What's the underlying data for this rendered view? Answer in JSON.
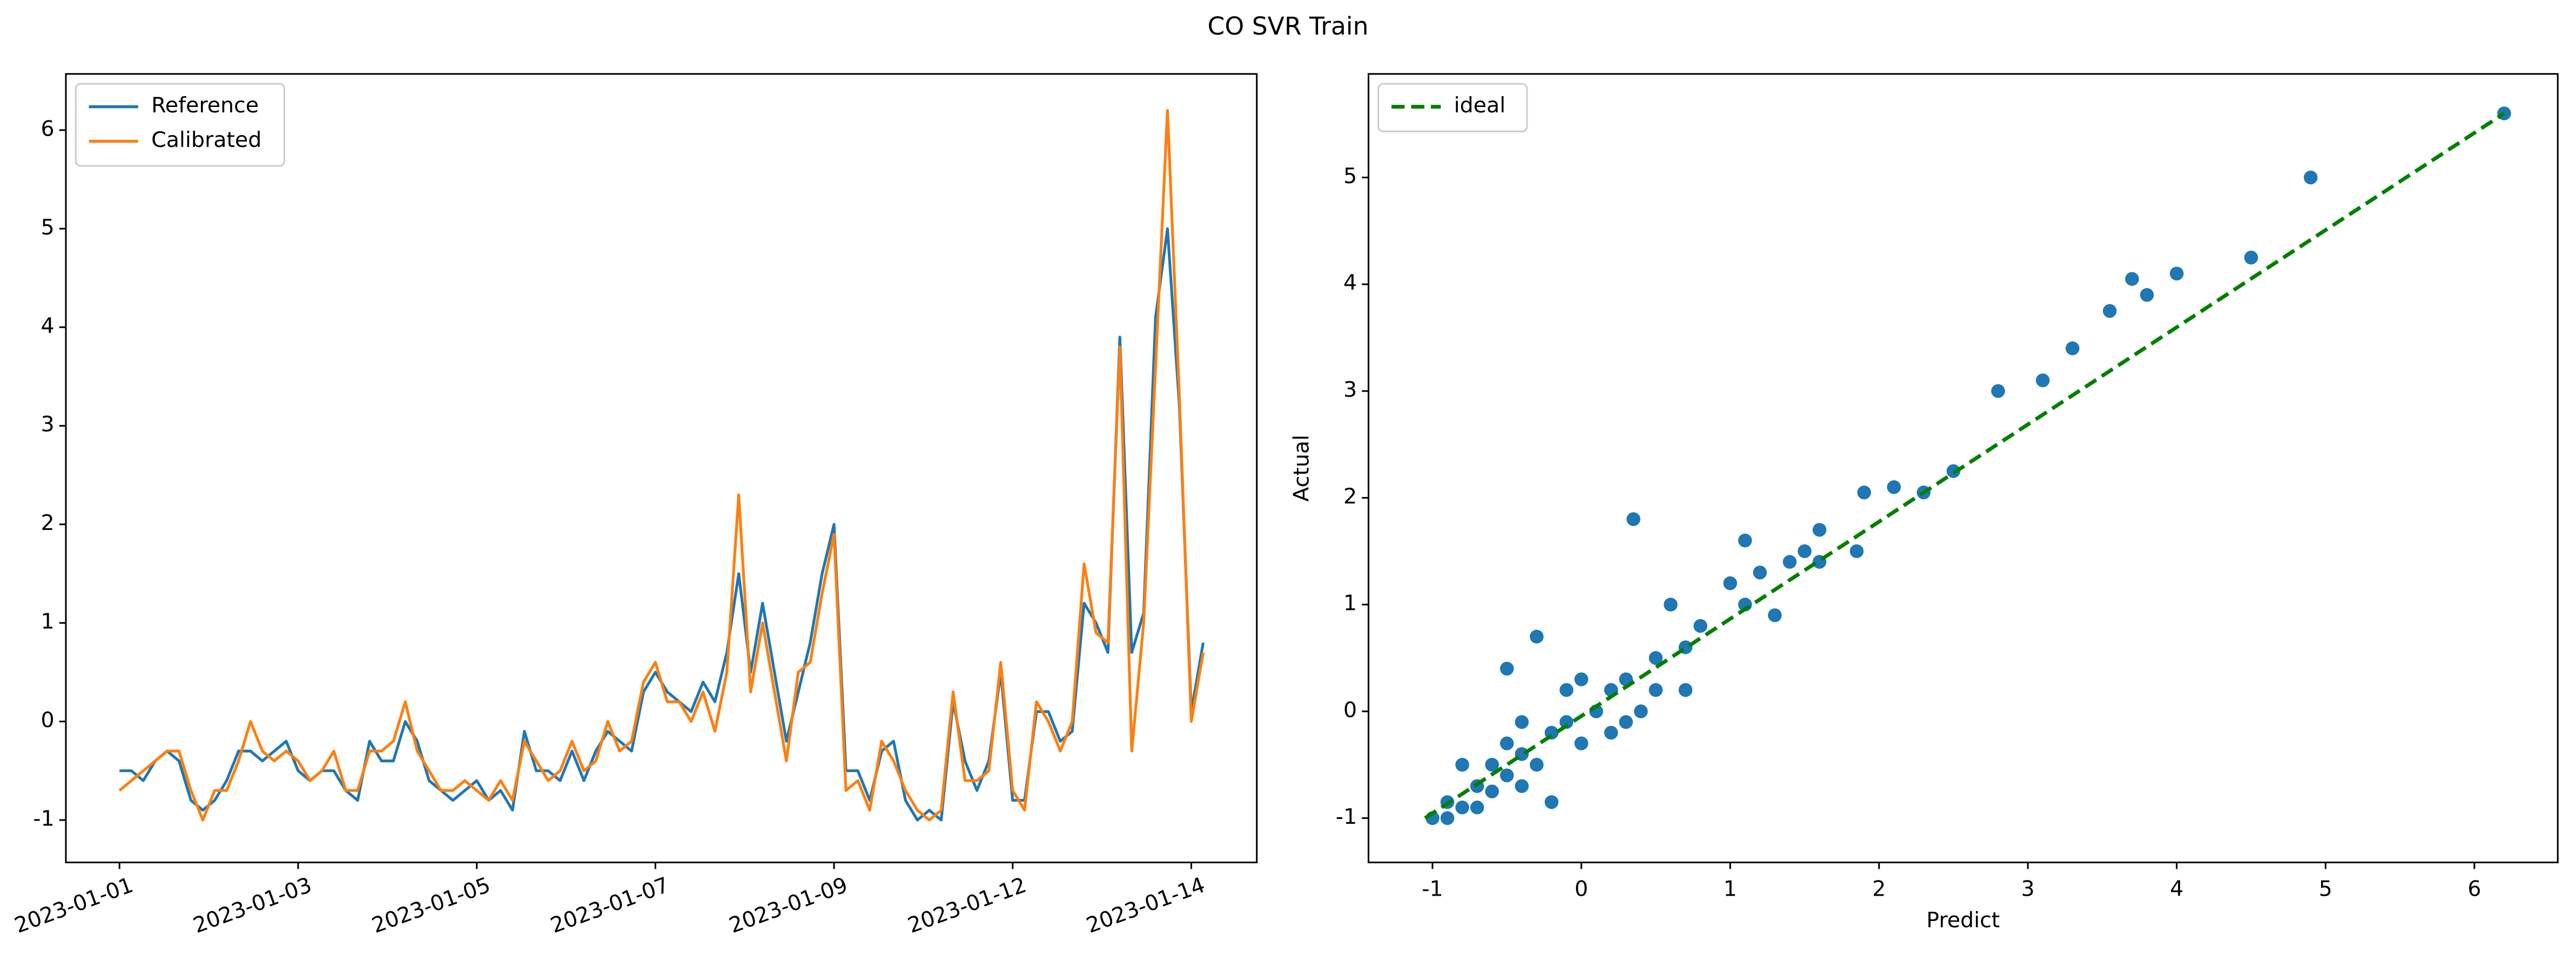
{
  "title": "CO SVR Train",
  "chart_data": [
    {
      "type": "line",
      "legend": "upper left",
      "grid": false,
      "series": [
        {
          "name": "Reference",
          "color": "#1f77b4",
          "values": [
            -0.5,
            -0.5,
            -0.6,
            -0.4,
            -0.3,
            -0.4,
            -0.8,
            -0.9,
            -0.8,
            -0.6,
            -0.3,
            -0.3,
            -0.4,
            -0.3,
            -0.2,
            -0.5,
            -0.6,
            -0.5,
            -0.5,
            -0.7,
            -0.8,
            -0.2,
            -0.4,
            -0.4,
            0.0,
            -0.2,
            -0.6,
            -0.7,
            -0.8,
            -0.7,
            -0.6,
            -0.8,
            -0.7,
            -0.9,
            -0.1,
            -0.5,
            -0.5,
            -0.6,
            -0.3,
            -0.6,
            -0.3,
            -0.1,
            -0.2,
            -0.3,
            0.3,
            0.5,
            0.3,
            0.2,
            0.1,
            0.4,
            0.2,
            0.7,
            1.5,
            0.5,
            1.2,
            0.5,
            -0.2,
            0.3,
            0.8,
            1.5,
            2.0,
            -0.5,
            -0.5,
            -0.8,
            -0.3,
            -0.2,
            -0.8,
            -1.0,
            -0.9,
            -1.0,
            0.2,
            -0.4,
            -0.7,
            -0.4,
            0.5,
            -0.8,
            -0.8,
            0.1,
            0.1,
            -0.2,
            -0.1,
            1.2,
            1.0,
            0.7,
            3.9,
            0.7,
            1.1,
            4.1,
            5.0,
            3.2,
            0.1,
            0.8
          ]
        },
        {
          "name": "Calibrated",
          "color": "#ff7f0e",
          "values": [
            -0.7,
            -0.6,
            -0.5,
            -0.4,
            -0.3,
            -0.3,
            -0.7,
            -1.0,
            -0.7,
            -0.7,
            -0.4,
            0.0,
            -0.3,
            -0.4,
            -0.3,
            -0.4,
            -0.6,
            -0.5,
            -0.3,
            -0.7,
            -0.7,
            -0.3,
            -0.3,
            -0.2,
            0.2,
            -0.3,
            -0.5,
            -0.7,
            -0.7,
            -0.6,
            -0.7,
            -0.8,
            -0.6,
            -0.8,
            -0.2,
            -0.4,
            -0.6,
            -0.5,
            -0.2,
            -0.5,
            -0.4,
            0.0,
            -0.3,
            -0.2,
            0.4,
            0.6,
            0.2,
            0.2,
            0.0,
            0.3,
            -0.1,
            0.5,
            2.3,
            0.3,
            1.0,
            0.3,
            -0.4,
            0.5,
            0.6,
            1.3,
            1.9,
            -0.7,
            -0.6,
            -0.9,
            -0.2,
            -0.4,
            -0.7,
            -0.9,
            -1.0,
            -0.9,
            0.3,
            -0.6,
            -0.6,
            -0.5,
            0.6,
            -0.7,
            -0.9,
            0.2,
            0.0,
            -0.3,
            0.0,
            1.6,
            0.9,
            0.8,
            3.8,
            -0.3,
            1.0,
            3.6,
            6.2,
            3.3,
            0.0,
            0.7
          ]
        }
      ],
      "xlim": [
        -4.5,
        95.5
      ],
      "xticks": [
        {
          "value": 0,
          "label": "2023-01-01"
        },
        {
          "value": 15,
          "label": "2023-01-03"
        },
        {
          "value": 30,
          "label": "2023-01-05"
        },
        {
          "value": 45,
          "label": "2023-01-07"
        },
        {
          "value": 60,
          "label": "2023-01-09"
        },
        {
          "value": 75,
          "label": "2023-01-12"
        },
        {
          "value": 90,
          "label": "2023-01-14"
        }
      ],
      "ylim": [
        -1.43,
        6.57
      ],
      "yticks": [
        -1,
        0,
        1,
        2,
        3,
        4,
        5,
        6
      ]
    },
    {
      "type": "scatter",
      "legend": "upper left",
      "grid": false,
      "x_label": "Predict",
      "y_label": "Actual",
      "points": {
        "color": "#1f77b4",
        "x": [
          -1.0,
          -0.9,
          -0.8,
          -0.7,
          -0.6,
          -0.5,
          -0.6,
          -0.4,
          -0.3,
          -0.5,
          -0.3,
          -0.5,
          -0.2,
          -0.1,
          -0.2,
          0.0,
          0.1,
          0.0,
          0.2,
          0.3,
          0.35,
          0.4,
          0.5,
          0.6,
          0.7,
          0.7,
          0.8,
          1.0,
          1.1,
          1.1,
          1.2,
          1.3,
          1.4,
          1.5,
          1.6,
          1.6,
          1.85,
          1.9,
          2.1,
          2.3,
          2.5,
          2.8,
          3.1,
          3.3,
          3.55,
          3.7,
          3.8,
          4.0,
          4.5,
          4.9,
          6.2,
          -0.8,
          -0.4,
          0.2,
          -0.1,
          0.5,
          -0.7,
          -0.9,
          0.3,
          -0.4
        ],
        "y": [
          -1.0,
          -0.85,
          -0.9,
          -0.7,
          -0.5,
          -0.6,
          -0.75,
          -0.4,
          -0.5,
          -0.3,
          0.7,
          0.4,
          -0.2,
          -0.1,
          -0.85,
          0.3,
          0.0,
          -0.3,
          0.2,
          0.3,
          1.8,
          0.0,
          0.5,
          1.0,
          0.6,
          0.2,
          0.8,
          1.2,
          1.6,
          1.0,
          1.3,
          0.9,
          1.4,
          1.5,
          1.7,
          1.4,
          1.5,
          2.05,
          2.1,
          2.05,
          2.25,
          3.0,
          3.1,
          3.4,
          3.75,
          4.05,
          3.9,
          4.1,
          4.25,
          5.0,
          5.6,
          -0.5,
          -0.7,
          -0.2,
          0.2,
          0.2,
          -0.9,
          -1.0,
          -0.1,
          -0.1
        ]
      },
      "ideal": {
        "name": "ideal",
        "color": "#008000",
        "x": [
          -1.05,
          6.2
        ],
        "y": [
          -1.0,
          5.6
        ]
      },
      "xlim": [
        -1.43,
        6.56
      ],
      "xticks": [
        -1,
        0,
        1,
        2,
        3,
        4,
        5,
        6
      ],
      "ylim": [
        -1.415,
        5.97
      ],
      "yticks": [
        -1,
        0,
        1,
        2,
        3,
        4,
        5
      ]
    }
  ]
}
